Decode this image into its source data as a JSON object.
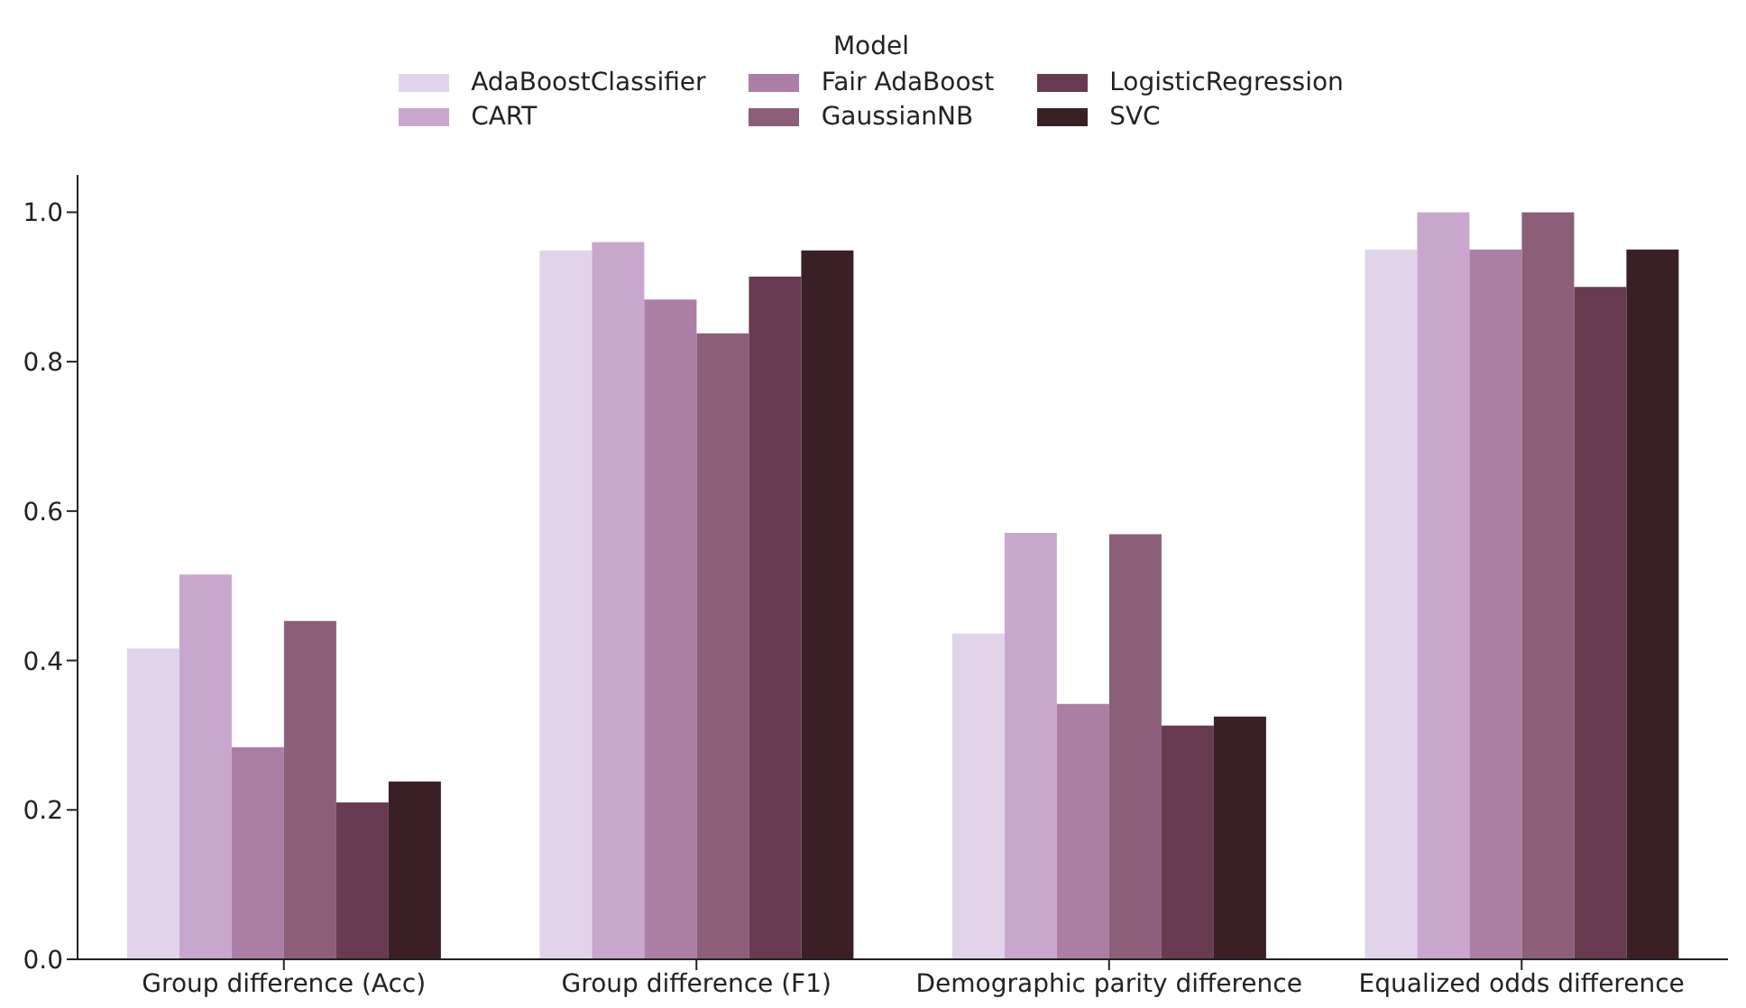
{
  "chart_data": {
    "type": "bar",
    "categories": [
      "Group difference (Acc)",
      "Group difference (F1)",
      "Demographic parity difference",
      "Equalized odds difference"
    ],
    "legend_title": "Model",
    "legend": "top",
    "grid": false,
    "ylim": [
      0,
      1.05
    ],
    "yticks": [
      {
        "value": 0,
        "label": "0.0"
      },
      0.2,
      0.4,
      0.6,
      0.8,
      {
        "value": 1,
        "label": "1.0"
      }
    ],
    "series": [
      {
        "name": "AdaBoostClassifier",
        "color": "#e1d4ea",
        "values": [
          0.416,
          0.949,
          0.436,
          0.95
        ]
      },
      {
        "name": "CART",
        "color": "#c9a6cd",
        "values": [
          0.515,
          0.96,
          0.571,
          1.0
        ]
      },
      {
        "name": "Fair AdaBoost",
        "color": "#ab7ea5",
        "values": [
          0.284,
          0.883,
          0.342,
          0.95
        ]
      },
      {
        "name": "GaussianNB",
        "color": "#8b5e7a",
        "values": [
          0.453,
          0.838,
          0.569,
          1.0
        ]
      },
      {
        "name": "LogisticRegression",
        "color": "#673b50",
        "values": [
          0.21,
          0.914,
          0.313,
          0.9
        ]
      },
      {
        "name": "SVC",
        "color": "#3a2026",
        "values": [
          0.238,
          0.949,
          0.325,
          0.95
        ]
      }
    ]
  }
}
